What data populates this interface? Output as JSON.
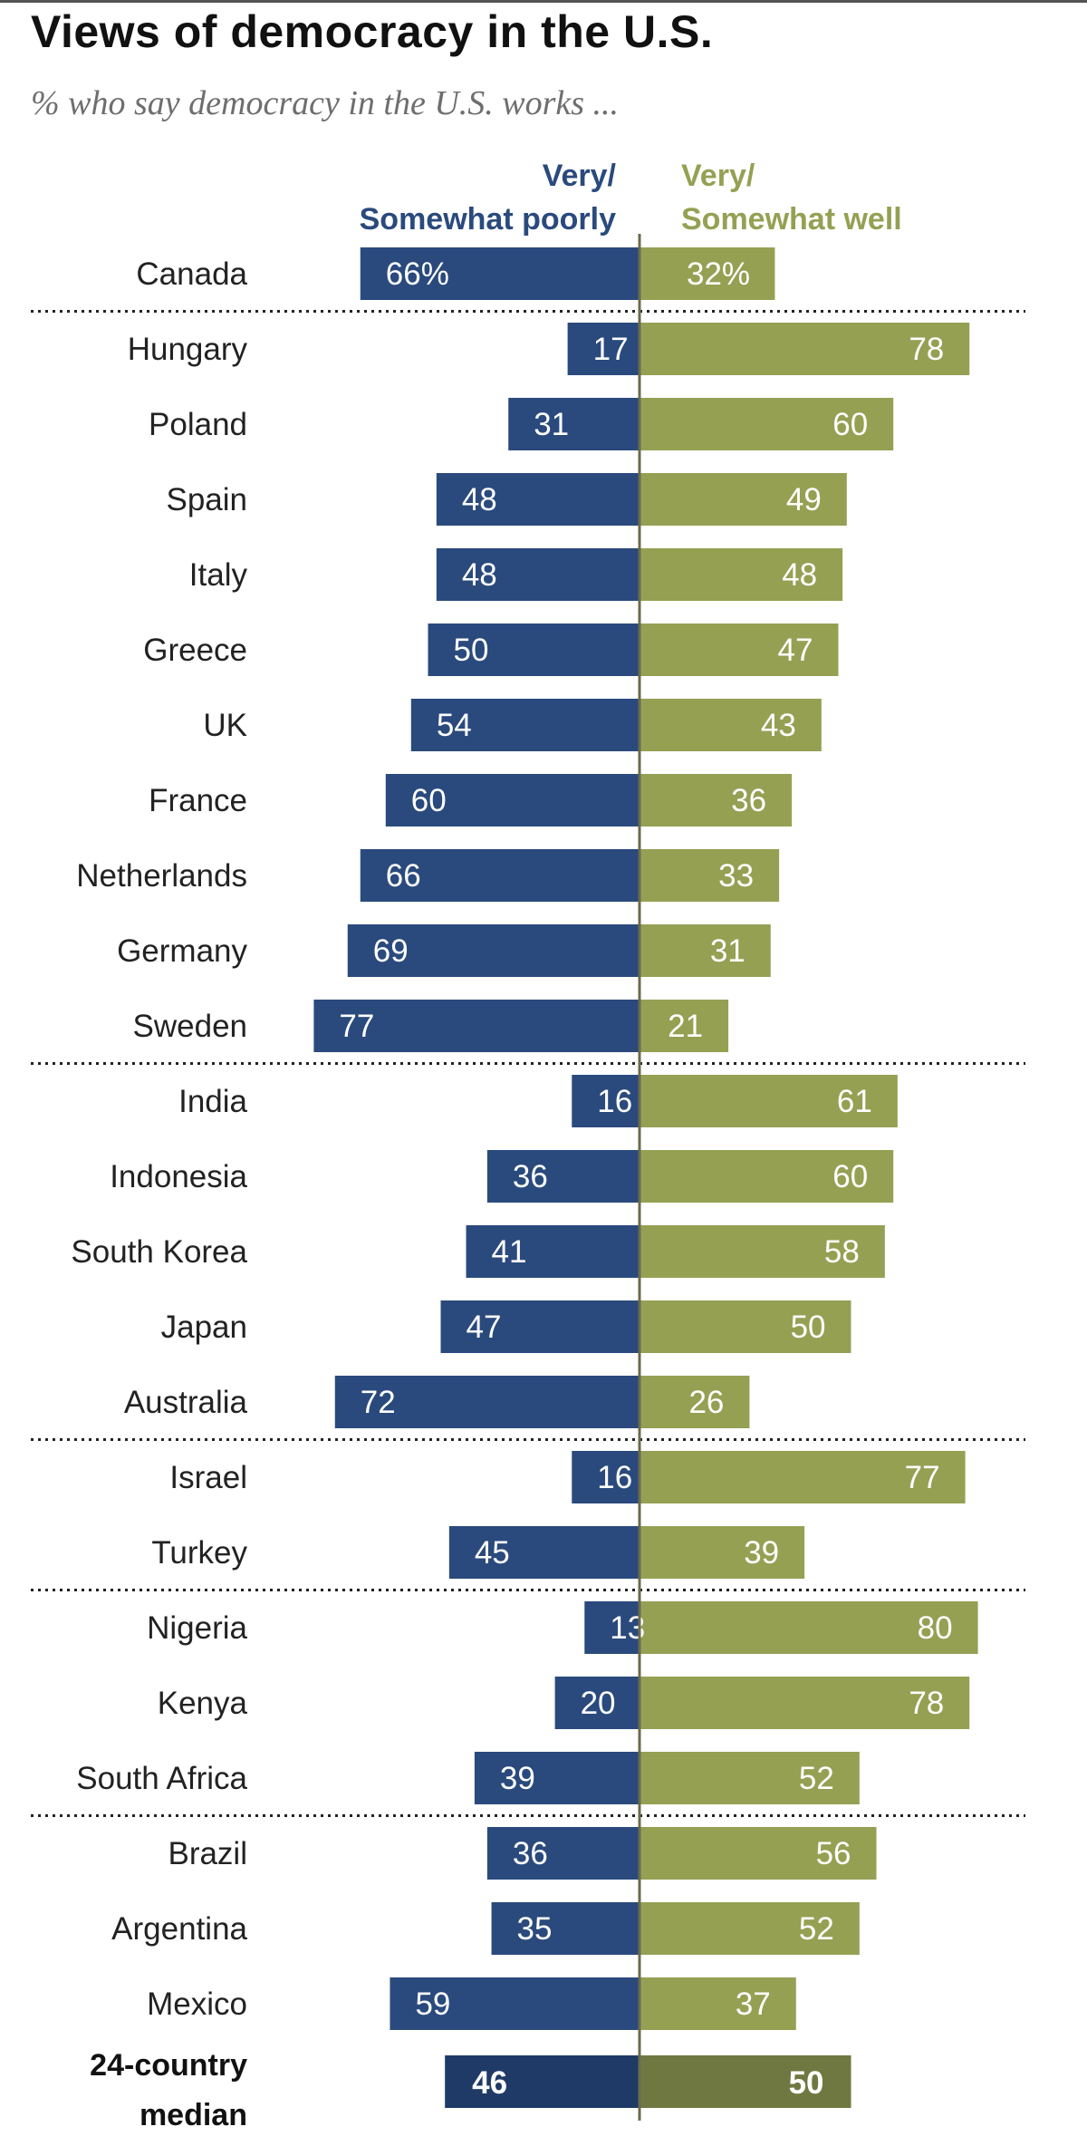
{
  "title": "Views of democracy in the U.S.",
  "subtitle": "% who say democracy in the U.S. works ...",
  "chart_data": {
    "type": "bar",
    "orientation": "horizontal-diverging",
    "unit": "%",
    "series": [
      {
        "name": "Very/ Somewhat poorly",
        "color": "#2a4a7d",
        "values": [
          66,
          17,
          31,
          48,
          48,
          50,
          54,
          60,
          66,
          69,
          77,
          16,
          36,
          41,
          47,
          72,
          16,
          45,
          13,
          20,
          39,
          36,
          35,
          59
        ]
      },
      {
        "name": "Very/ Somewhat well",
        "color": "#95a053",
        "values": [
          32,
          78,
          60,
          49,
          48,
          47,
          43,
          36,
          33,
          31,
          21,
          61,
          60,
          58,
          50,
          26,
          77,
          39,
          80,
          78,
          52,
          56,
          52,
          37
        ]
      }
    ],
    "categories": [
      "Canada",
      "Hungary",
      "Poland",
      "Spain",
      "Italy",
      "Greece",
      "UK",
      "France",
      "Netherlands",
      "Germany",
      "Sweden",
      "India",
      "Indonesia",
      "South Korea",
      "Japan",
      "Australia",
      "Israel",
      "Turkey",
      "Nigeria",
      "Kenya",
      "South Africa",
      "Brazil",
      "Argentina",
      "Mexico"
    ],
    "value_labels_first_row": {
      "poorly": "66%",
      "well": "32%"
    },
    "group_separators_after": [
      "Canada",
      "Sweden",
      "Australia",
      "Turkey",
      "South Africa"
    ],
    "median": {
      "label_line1": "24-country",
      "label_line2": "median",
      "poorly": 46,
      "well": 50,
      "poorly_color": "#1f3a66",
      "well_color": "#6f7840"
    }
  },
  "legend": {
    "left_line1": "Very/",
    "left_line2": "Somewhat poorly",
    "right_line1": "Very/",
    "right_line2": "Somewhat well"
  }
}
